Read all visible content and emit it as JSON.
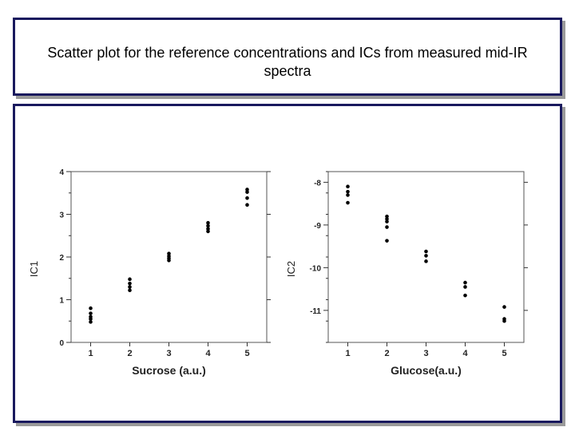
{
  "title": "Scatter plot for the reference concentrations and ICs from measured mid-IR spectra",
  "chart_data": [
    {
      "type": "scatter",
      "xlabel": "Sucrose (a.u.)",
      "ylabel": "IC1",
      "xlim": [
        0.5,
        5.5
      ],
      "ylim": [
        0,
        4
      ],
      "xticks": [
        "1",
        "2",
        "3",
        "4",
        "5"
      ],
      "yticks": [
        "0",
        "1",
        "2",
        "3",
        "4"
      ],
      "grid": false,
      "points": {
        "x": [
          1,
          1,
          1,
          1,
          1,
          2,
          2,
          2,
          2,
          3,
          3,
          3,
          3,
          4,
          4,
          4,
          4,
          5,
          5,
          5,
          5
        ],
        "y": [
          0.8,
          0.68,
          0.6,
          0.55,
          0.48,
          1.48,
          1.38,
          1.3,
          1.22,
          2.08,
          2.02,
          1.97,
          1.92,
          2.8,
          2.73,
          2.66,
          2.6,
          3.58,
          3.52,
          3.38,
          3.22
        ]
      }
    },
    {
      "type": "scatter",
      "xlabel": "Glucose(a.u.)",
      "ylabel": "IC2",
      "xlim": [
        0.5,
        5.5
      ],
      "ylim": [
        -11.75,
        -7.75
      ],
      "xticks": [
        "1",
        "2",
        "3",
        "4",
        "5"
      ],
      "yticks": [
        "-8",
        "-9",
        "-10",
        "-11"
      ],
      "grid": false,
      "points": {
        "x": [
          1,
          1,
          1,
          1,
          2,
          2,
          2,
          2,
          2,
          3,
          3,
          3,
          4,
          4,
          4,
          5,
          5,
          5
        ],
        "y": [
          -8.1,
          -8.22,
          -8.3,
          -8.48,
          -8.8,
          -8.86,
          -8.92,
          -9.05,
          -9.37,
          -9.62,
          -9.72,
          -9.85,
          -10.35,
          -10.45,
          -10.65,
          -10.92,
          -11.2,
          -11.25
        ]
      }
    }
  ]
}
